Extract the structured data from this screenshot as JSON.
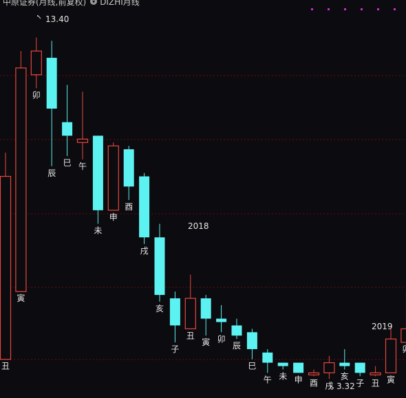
{
  "header": {
    "title": "中原证券(月线,前复权)",
    "indicator_label": "DIZHI月线"
  },
  "colors": {
    "background": "#0c0b0f",
    "up": "#e8483f",
    "down": "#5cf2f2",
    "grid": "#6a0c0c",
    "dots": "#d02ad0",
    "text": "#e6e6e6"
  },
  "chart_data": {
    "type": "candlestick",
    "ylim": [
      2.9,
      14.1
    ],
    "extremes": {
      "high_label": "13.40",
      "low_label": "3.32"
    },
    "year_markers": [
      "2018",
      "2019"
    ],
    "candles": [
      {
        "branch": "丑",
        "o": 3.9,
        "c": 9.3,
        "h": 10.0,
        "l": 3.9
      },
      {
        "branch": "寅",
        "o": 5.9,
        "c": 12.5,
        "h": 13.0,
        "l": 5.9
      },
      {
        "branch": "卯",
        "o": 12.3,
        "c": 13.0,
        "h": 13.4,
        "l": 11.9
      },
      {
        "branch": "辰",
        "o": 12.8,
        "c": 11.3,
        "h": 13.3,
        "l": 9.6
      },
      {
        "branch": "巳",
        "o": 10.9,
        "c": 10.5,
        "h": 12.0,
        "l": 9.9
      },
      {
        "branch": "午",
        "o": 10.3,
        "c": 10.4,
        "h": 11.8,
        "l": 9.8
      },
      {
        "branch": "未",
        "o": 10.5,
        "c": 8.3,
        "h": 10.5,
        "l": 7.9
      },
      {
        "branch": "申",
        "o": 8.3,
        "c": 10.2,
        "h": 10.3,
        "l": 8.3
      },
      {
        "branch": "酉",
        "o": 10.1,
        "c": 9.0,
        "h": 10.2,
        "l": 8.6
      },
      {
        "branch": "戌",
        "o": 9.3,
        "c": 7.5,
        "h": 9.4,
        "l": 7.3
      },
      {
        "branch": "亥",
        "o": 7.5,
        "c": 5.8,
        "h": 7.9,
        "l": 5.6
      },
      {
        "branch": "子",
        "o": 5.7,
        "c": 4.9,
        "h": 5.9,
        "l": 4.4
      },
      {
        "branch": "丑",
        "o": 4.8,
        "c": 5.7,
        "h": 6.4,
        "l": 4.8
      },
      {
        "branch": "寅",
        "o": 5.7,
        "c": 5.1,
        "h": 5.8,
        "l": 4.6
      },
      {
        "branch": "卯",
        "o": 5.1,
        "c": 5.0,
        "h": 5.5,
        "l": 4.7
      },
      {
        "branch": "辰",
        "o": 4.9,
        "c": 4.6,
        "h": 5.1,
        "l": 4.5
      },
      {
        "branch": "巳",
        "o": 4.7,
        "c": 4.2,
        "h": 4.8,
        "l": 3.9
      },
      {
        "branch": "午",
        "o": 4.1,
        "c": 3.8,
        "h": 4.2,
        "l": 3.5
      },
      {
        "branch": "未",
        "o": 3.8,
        "c": 3.7,
        "h": 3.8,
        "l": 3.6
      },
      {
        "branch": "申",
        "o": 3.8,
        "c": 3.5,
        "h": 3.8,
        "l": 3.5
      },
      {
        "branch": "酉",
        "o": 3.5,
        "c": 3.5,
        "h": 3.6,
        "l": 3.4
      },
      {
        "branch": "戌",
        "o": 3.5,
        "c": 3.8,
        "h": 4.0,
        "l": 3.32
      },
      {
        "branch": "亥",
        "o": 3.8,
        "c": 3.7,
        "h": 4.2,
        "l": 3.6
      },
      {
        "branch": "子",
        "o": 3.8,
        "c": 3.5,
        "h": 3.8,
        "l": 3.4
      },
      {
        "branch": "丑",
        "o": 3.5,
        "c": 3.5,
        "h": 3.7,
        "l": 3.4
      },
      {
        "branch": "寅",
        "o": 3.5,
        "c": 4.5,
        "h": 4.8,
        "l": 3.5
      },
      {
        "branch": "卯",
        "o": 4.4,
        "c": 4.8,
        "h": 5.9,
        "l": 4.4
      }
    ]
  }
}
